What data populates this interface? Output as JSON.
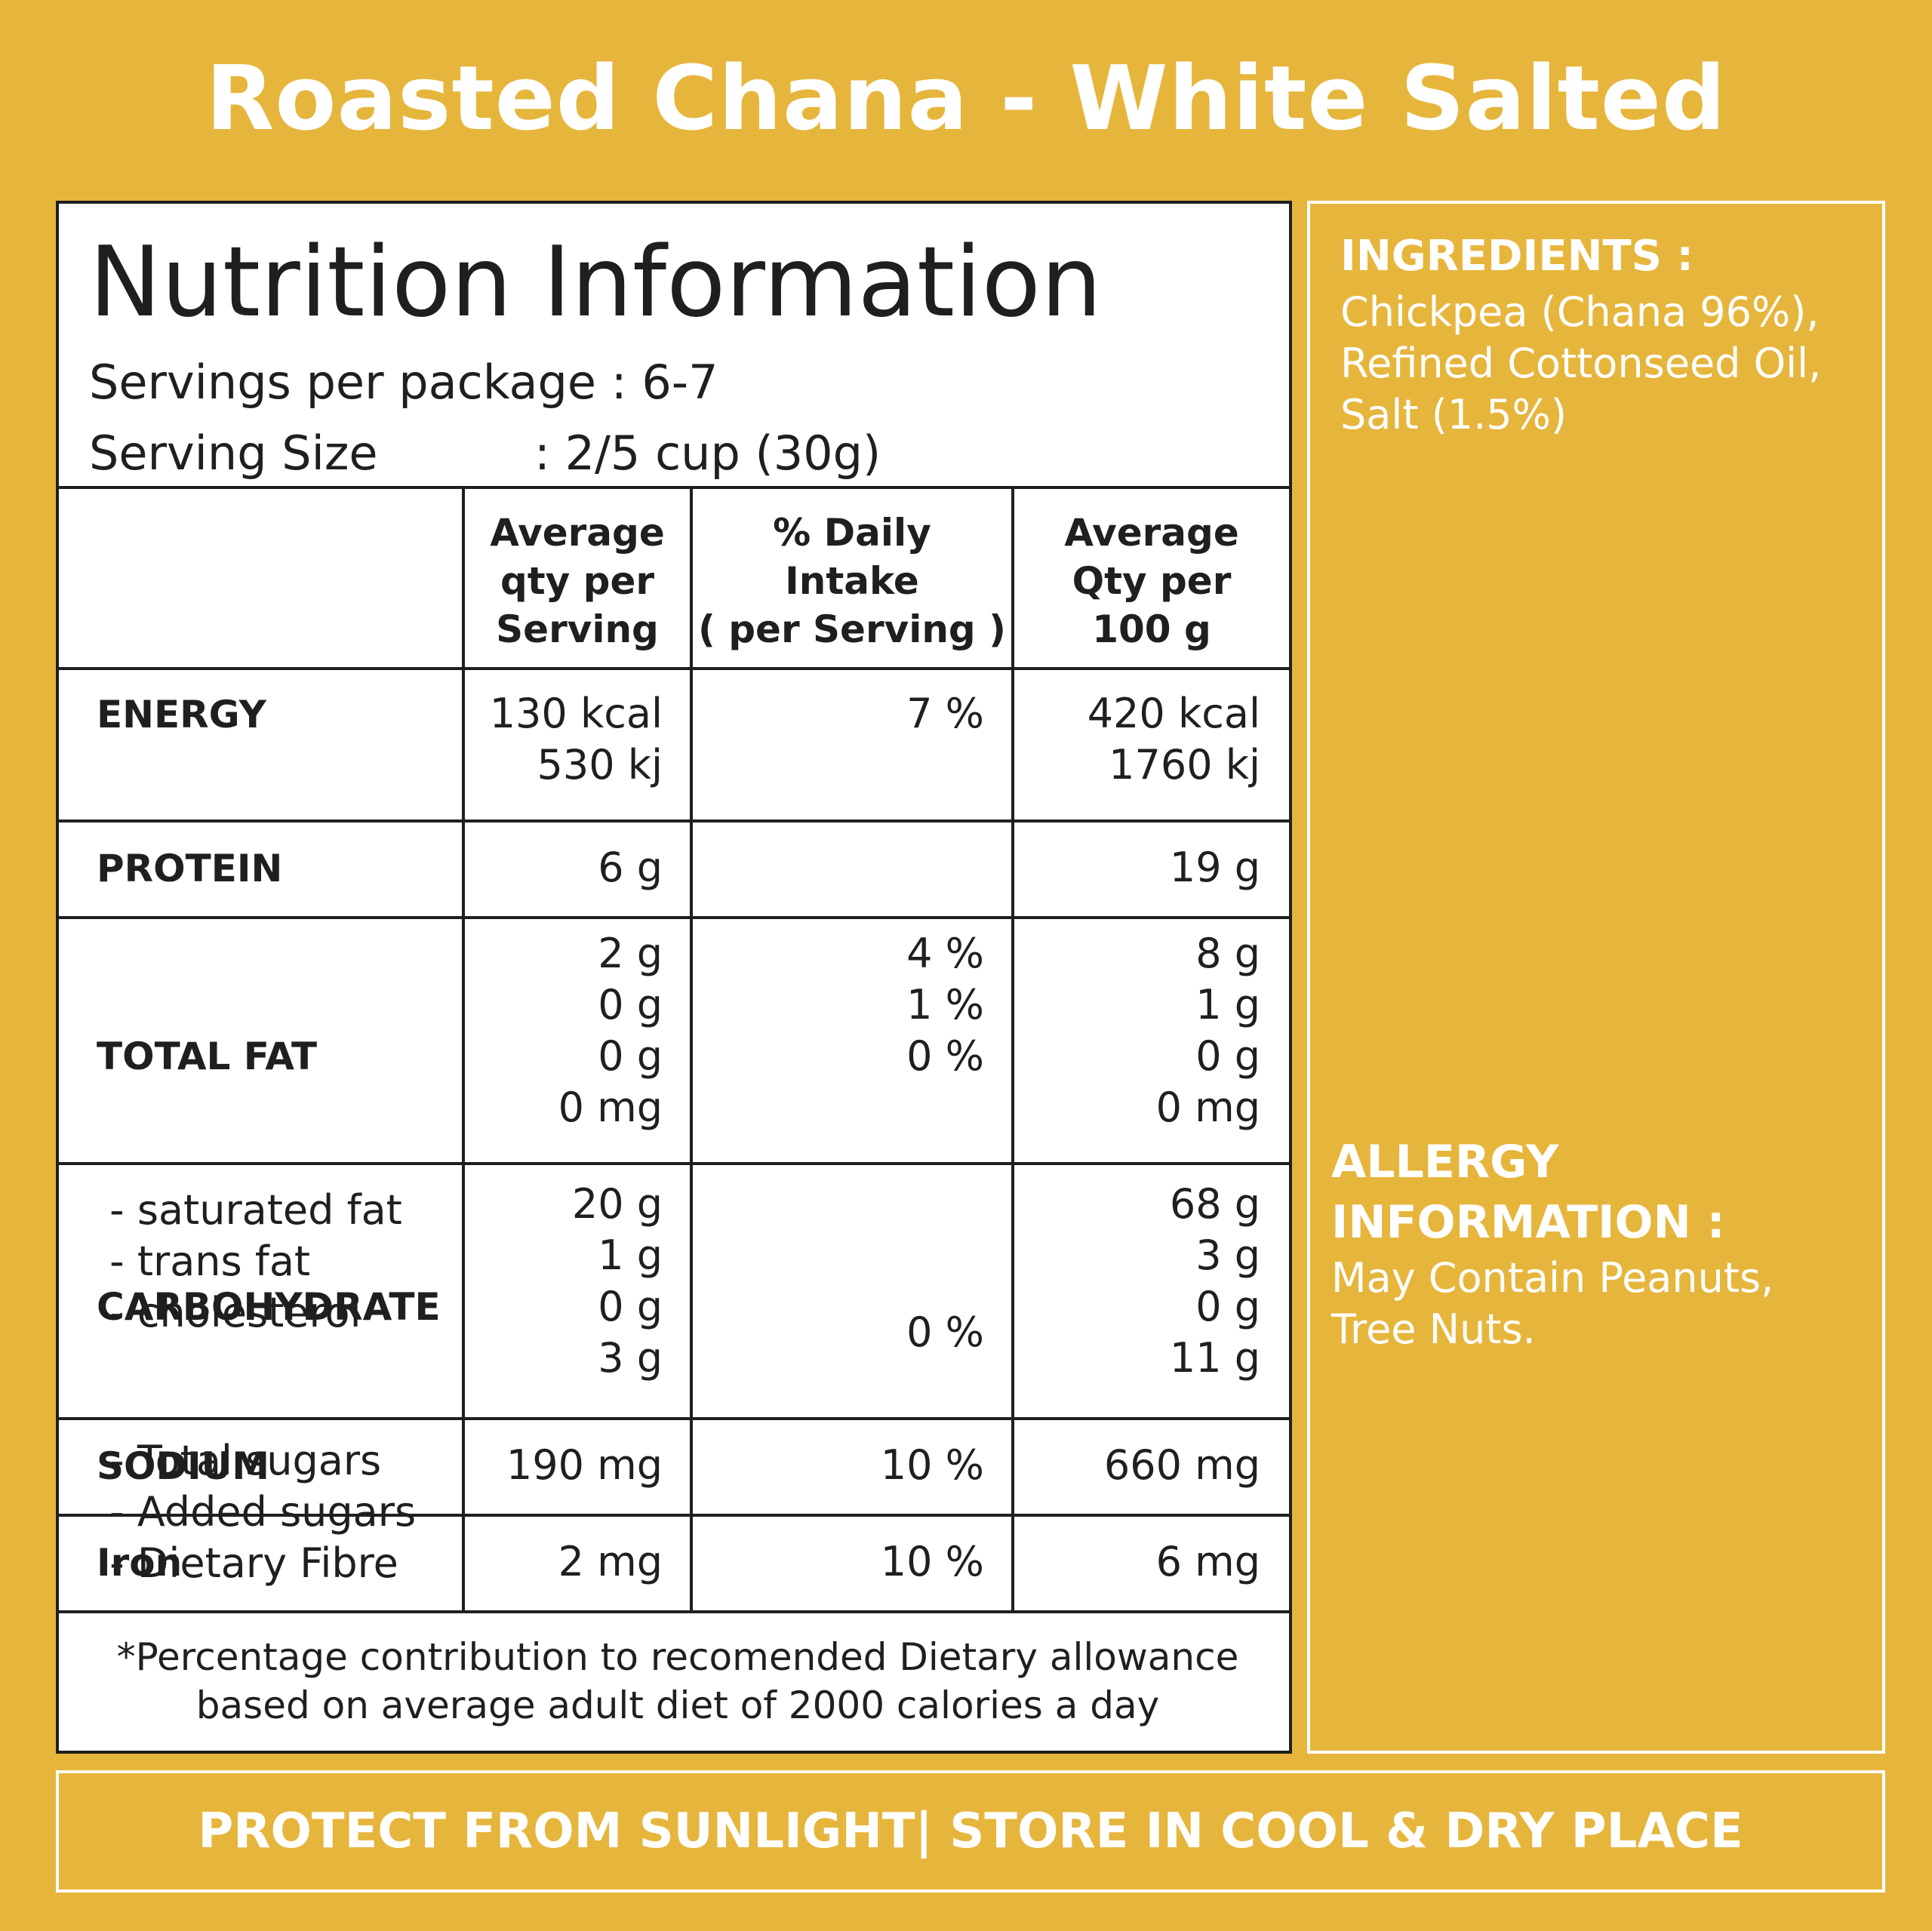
{
  "title": "Roasted Chana - White Salted",
  "nutrition": {
    "heading": "Nutrition Information",
    "servings_label": "Servings per package",
    "servings_value": ": 6-7",
    "serving_size_label": "Serving Size",
    "serving_size_value": ": 2/5 cup (30g)",
    "columns": [
      "Average\nqty per\nServing",
      "% Daily\nIntake\n( per Serving )",
      "Average\nQty per\n100 g"
    ],
    "rows": [
      {
        "name": "ENERGY",
        "sub": "",
        "per_serving": "130 kcal\n530 kj",
        "daily": "7 %",
        "per_100g": "420 kcal\n1760 kj"
      },
      {
        "name": "PROTEIN",
        "sub": "",
        "per_serving": "6 g",
        "daily": "",
        "per_100g": "19 g"
      },
      {
        "name": "TOTAL FAT",
        "sub": " - saturated fat\n - trans fat\n - cholesterol",
        "per_serving": "2 g\n0 g\n0 g\n0 mg",
        "daily": "4 %\n1 %\n0 %",
        "per_100g": "8 g\n1 g\n0 g\n0 mg"
      },
      {
        "name": "CARBOHYDRATE",
        "sub": " - Total sugars\n - Added sugars\n - Dietary Fibre",
        "per_serving": "20 g\n1 g\n0 g\n3 g",
        "daily": "0 %",
        "per_100g": "68 g\n3 g\n0 g\n11 g"
      },
      {
        "name": "SODIUM",
        "sub": "",
        "per_serving": "190 mg",
        "daily": "10 %",
        "per_100g": "660 mg"
      },
      {
        "name": "Iron",
        "sub": "",
        "per_serving": "2 mg",
        "daily": "10 %",
        "per_100g": "6 mg"
      }
    ],
    "footnote": "*Percentage contribution to recomended Dietary allowance\nbased on average adult diet of 2000 calories a day"
  },
  "ingredients": {
    "heading": "INGREDIENTS :",
    "text": "Chickpea (Chana 96%),\nRefined Cottonseed Oil,\nSalt (1.5%)"
  },
  "allergy": {
    "heading": "ALLERGY\nINFORMATION :",
    "text": "May Contain Peanuts,\nTree Nuts."
  },
  "storage": "PROTECT FROM SUNLIGHT| STORE IN COOL & DRY PLACE",
  "colors": {
    "background": "#E6B53B",
    "text_dark": "#1f1f1f",
    "text_light": "#ffffff"
  }
}
